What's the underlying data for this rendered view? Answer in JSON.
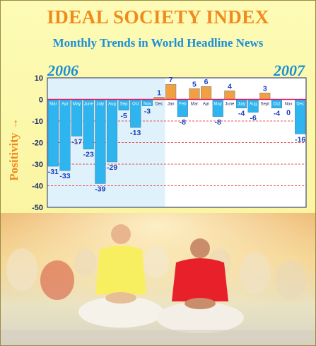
{
  "title": "IDEAL SOCIETY INDEX",
  "subtitle": "Monthly Trends in World Headline News",
  "year_start": "2006",
  "year_end": "2007",
  "ylabel": "Positivity →",
  "colors": {
    "title": "#f08a1c",
    "subtitle": "#1a8fd6",
    "negative_bar": "#2eb4ee",
    "positive_bar": "#f0a040",
    "zero_line": "#e01a6a",
    "grid": "#e02020",
    "value_label": "#1a3fbf",
    "region_2006": "#dff1fb"
  },
  "chart_data": {
    "type": "bar",
    "title": "IDEAL SOCIETY INDEX",
    "subtitle": "Monthly Trends in World Headline News",
    "xlabel": "",
    "ylabel": "Positivity →",
    "ylim": [
      -50,
      10
    ],
    "yticks": [
      10,
      0,
      -10,
      -20,
      -30,
      -40,
      -50
    ],
    "grid": true,
    "categories": [
      "Mar",
      "Apr",
      "May",
      "June",
      "July",
      "Aug",
      "Sep",
      "Oct",
      "Nov",
      "Dec",
      "Jan",
      "Feb",
      "Mar",
      "Apr",
      "May",
      "June",
      "July",
      "Aug",
      "Sept",
      "Oct",
      "Nov",
      "Dec"
    ],
    "values": [
      -31,
      -33,
      -17,
      -23,
      -39,
      -29,
      -5,
      -13,
      -3,
      1,
      7,
      -8,
      5,
      6,
      -8,
      4,
      -4,
      -6,
      3,
      -4,
      0,
      -16
    ],
    "series_years": [
      "2006",
      "2006",
      "2006",
      "2006",
      "2006",
      "2006",
      "2006",
      "2006",
      "2006",
      "2006",
      "2007",
      "2007",
      "2007",
      "2007",
      "2007",
      "2007",
      "2007",
      "2007",
      "2007",
      "2007",
      "2007",
      "2007"
    ]
  },
  "photo": {
    "description_icon": "group-meditation-photo-icon"
  }
}
